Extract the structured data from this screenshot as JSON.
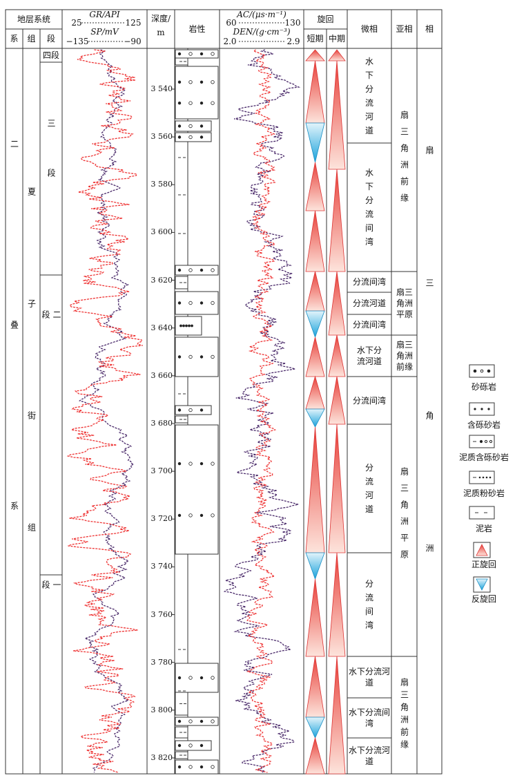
{
  "header": {
    "strata": "地层系统",
    "system": "系",
    "formation": "组",
    "member": "段",
    "gr_label": "GR/API",
    "gr_min": "25",
    "gr_max": "125",
    "sp_label": "SP/mV",
    "sp_min": "−135",
    "sp_max": "−90",
    "depth_title": "深度/",
    "depth_unit": "m",
    "lithology": "岩性",
    "ac_label": "AC/(μs·m⁻¹)",
    "ac_min": "60",
    "ac_max": "130",
    "den_label": "DEN/(g·cm⁻³)",
    "den_min": "2.0",
    "den_max": "2.9",
    "cycle": "旋回",
    "short_term": "短期",
    "mid_term": "中期",
    "microfacies": "微相",
    "subfacies": "亚相",
    "facies": "相"
  },
  "system": "二叠系",
  "formation": "夏子街组",
  "members": [
    "四段",
    "三段",
    "二段",
    "一段"
  ],
  "depth_ticks": [
    {
      "value": 3540,
      "label": "3 540"
    },
    {
      "value": 3560,
      "label": "3 560"
    },
    {
      "value": 3580,
      "label": "3 580"
    },
    {
      "value": 3600,
      "label": "3 600"
    },
    {
      "value": 3620,
      "label": "3 620"
    },
    {
      "value": 3640,
      "label": "3 640"
    },
    {
      "value": 3660,
      "label": "3 660"
    },
    {
      "value": 3680,
      "label": "3 680"
    },
    {
      "value": 3700,
      "label": "3 700"
    },
    {
      "value": 3720,
      "label": "3 720"
    },
    {
      "value": 3740,
      "label": "3 740"
    },
    {
      "value": 3760,
      "label": "3 760"
    },
    {
      "value": 3780,
      "label": "3 780"
    },
    {
      "value": 3800,
      "label": "3 800"
    },
    {
      "value": 3820,
      "label": "3 820"
    }
  ],
  "microfacies": [
    "水下分流河道",
    "水下分流间湾",
    "分流间湾",
    "分流河道",
    "分流间湾",
    "水下分流河道",
    "分流间湾",
    "分流河道",
    "分流间湾",
    "水下分流河道",
    "水下分流间湾",
    "水下分流河道"
  ],
  "subfacies": [
    "扇三角洲前缘",
    "扇三角洲平原",
    "扇三角洲前缘",
    "扇三角洲平原",
    "扇三角洲前缘"
  ],
  "facies": "扇三角洲",
  "legend": [
    "砂砾岩",
    "含砾砂岩",
    "泥质含砾砂岩",
    "泥质粉砂岩",
    "泥岩",
    "正旋回",
    "反旋回"
  ]
}
